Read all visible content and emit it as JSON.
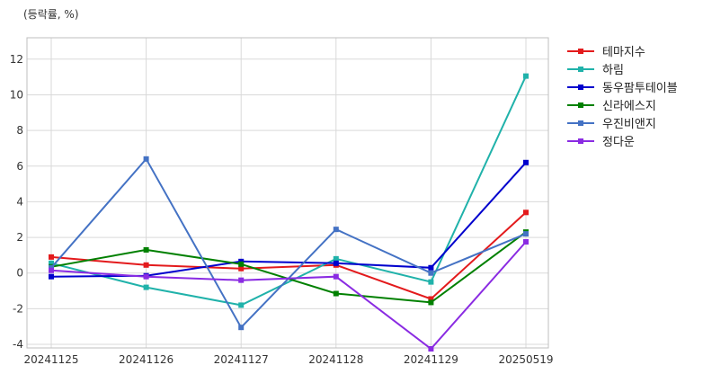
{
  "chart_data": {
    "type": "line",
    "unit_label": "(등락률, %)",
    "categories": [
      "20241125",
      "20241126",
      "20241127",
      "20241128",
      "20241129",
      "20250519"
    ],
    "ylim": [
      -4.2,
      13.2
    ],
    "yticks": [
      -4,
      -2,
      0,
      2,
      4,
      6,
      8,
      10,
      12
    ],
    "grid": true,
    "legend_position": "right",
    "series": [
      {
        "name": "테마지수",
        "color": "#e31a1c",
        "values": [
          0.9,
          0.45,
          0.25,
          0.45,
          -1.45,
          3.4
        ]
      },
      {
        "name": "하림",
        "color": "#20b2aa",
        "values": [
          0.55,
          -0.8,
          -1.8,
          0.8,
          -0.5,
          11.05
        ]
      },
      {
        "name": "동우팜투테이블",
        "color": "#0000cd",
        "values": [
          -0.2,
          -0.15,
          0.65,
          0.55,
          0.3,
          6.2
        ]
      },
      {
        "name": "신라에스지",
        "color": "#008000",
        "values": [
          0.35,
          1.3,
          0.5,
          -1.15,
          -1.65,
          2.3
        ]
      },
      {
        "name": "우진비앤지",
        "color": "#4472c4",
        "values": [
          0.3,
          6.4,
          -3.05,
          2.45,
          0.0,
          2.2
        ]
      },
      {
        "name": "정다운",
        "color": "#8a2be2",
        "values": [
          0.15,
          -0.2,
          -0.4,
          -0.2,
          -4.25,
          1.75
        ]
      }
    ]
  }
}
